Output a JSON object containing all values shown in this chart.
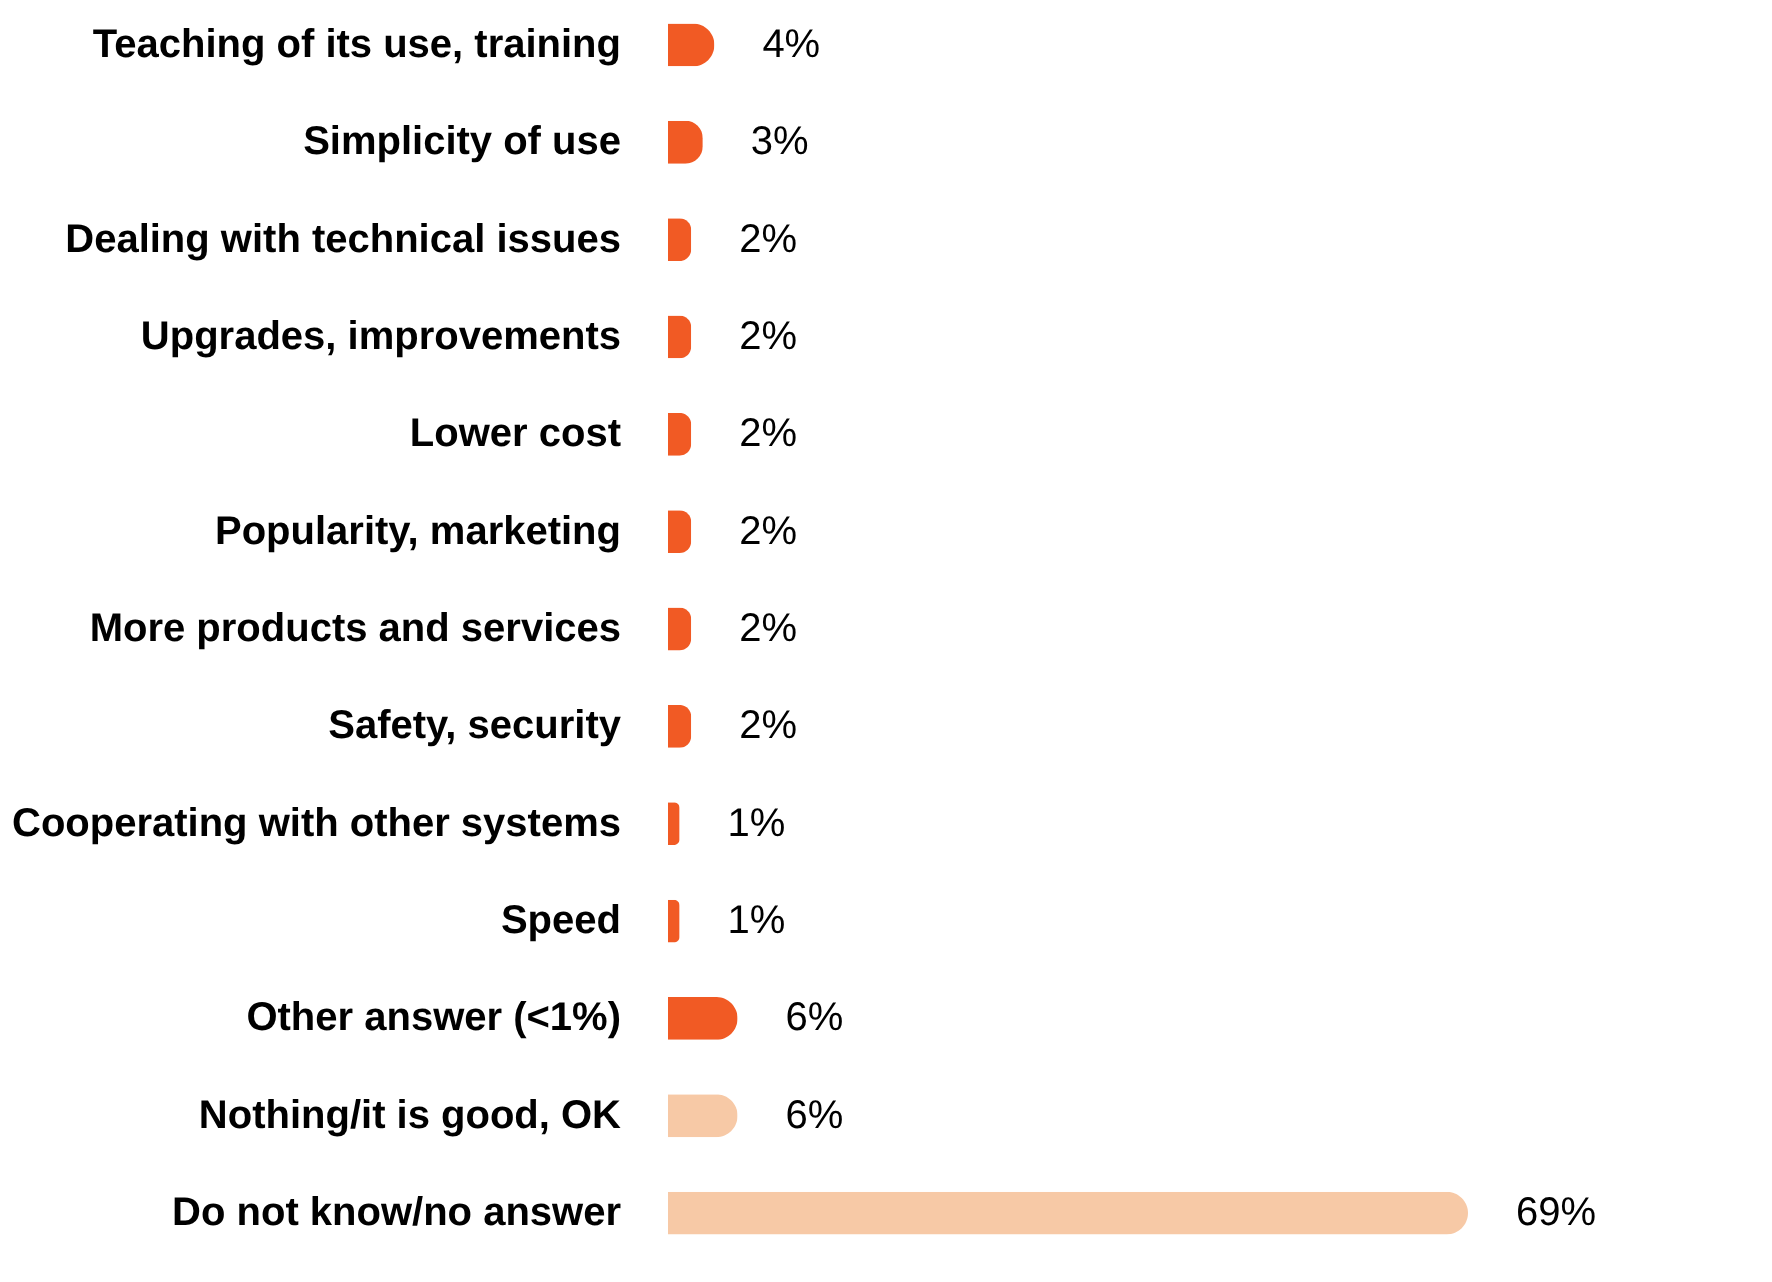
{
  "chart_data": {
    "type": "bar",
    "orientation": "horizontal",
    "categories": [
      "Teaching of its use, training",
      "Simplicity of use",
      "Dealing with technical issues",
      "Upgrades, improvements",
      "Lower cost",
      "Popularity, marketing",
      "More products and services",
      "Safety, security",
      "Cooperating with other systems",
      "Speed",
      "Other answer (<1%)",
      "Nothing/it is good, OK",
      "Do not know/no answer"
    ],
    "values": [
      4,
      3,
      2,
      2,
      2,
      2,
      2,
      2,
      1,
      1,
      6,
      6,
      69
    ],
    "colors": [
      "#f15a24",
      "#f15a24",
      "#f15a24",
      "#f15a24",
      "#f15a24",
      "#f15a24",
      "#f15a24",
      "#f15a24",
      "#f15a24",
      "#f15a24",
      "#f15a24",
      "#f7c9a6",
      "#f7c9a6"
    ],
    "value_labels": [
      "4%",
      "3%",
      "2%",
      "2%",
      "2%",
      "2%",
      "2%",
      "2%",
      "1%",
      "1%",
      "6%",
      "6%",
      "69%"
    ],
    "grid": false
  }
}
